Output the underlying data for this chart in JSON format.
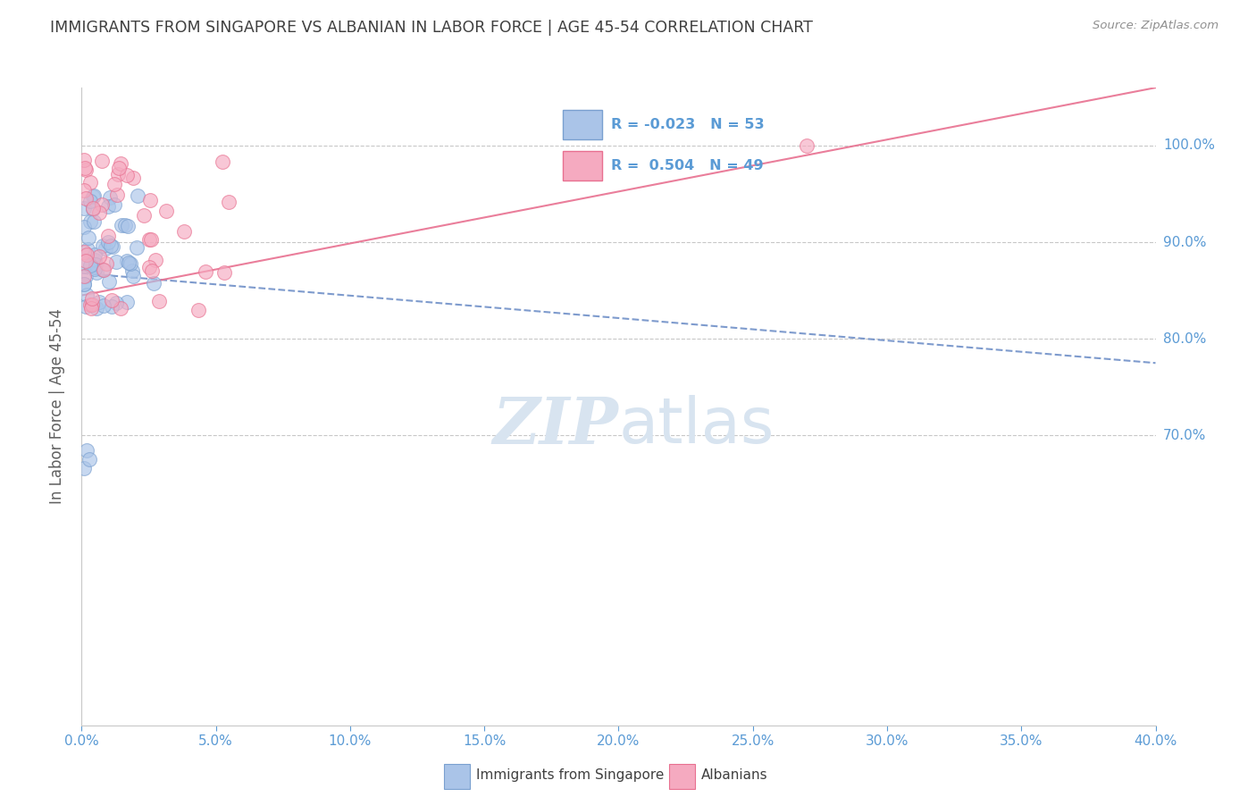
{
  "title": "IMMIGRANTS FROM SINGAPORE VS ALBANIAN IN LABOR FORCE | AGE 45-54 CORRELATION CHART",
  "source": "Source: ZipAtlas.com",
  "ylabel": "In Labor Force | Age 45-54",
  "singapore_R": "-0.023",
  "singapore_N": "53",
  "albanian_R": "0.504",
  "albanian_N": "49",
  "singapore_color": "#aac4e8",
  "albanian_color": "#f5aac0",
  "singapore_edge_color": "#7aA0d0",
  "albanian_edge_color": "#e87090",
  "singapore_line_color": "#7090c8",
  "albanian_line_color": "#e87090",
  "background_color": "#ffffff",
  "grid_color": "#c8c8c8",
  "title_color": "#404040",
  "axis_label_color": "#5b9bd5",
  "legend_bg_color": "#eef4fb",
  "legend_border_color": "#b0c8e8",
  "watermark_color": "#d8e4f0",
  "xmin": 0.0,
  "xmax": 0.4,
  "ymin": 0.4,
  "ymax": 1.06,
  "xtick_positions": [
    0.0,
    0.05,
    0.1,
    0.15,
    0.2,
    0.25,
    0.3,
    0.35,
    0.4
  ],
  "xtick_labels": [
    "0.0%",
    "5.0%",
    "10.0%",
    "15.0%",
    "20.0%",
    "25.0%",
    "30.0%",
    "35.0%",
    "40.0%"
  ],
  "ytick_positions": [
    0.7,
    0.8,
    0.9,
    1.0
  ],
  "ytick_labels": [
    "70.0%",
    "80.0%",
    "90.0%",
    "100.0%"
  ],
  "sg_trend_x0": 0.0,
  "sg_trend_y0": 0.868,
  "sg_trend_x1": 0.4,
  "sg_trend_y1": 0.775,
  "al_trend_x0": 0.0,
  "al_trend_y0": 0.845,
  "al_trend_x1": 0.4,
  "al_trend_y1": 1.06,
  "bottom_legend_left": "Immigrants from Singapore",
  "bottom_legend_right": "Albanians"
}
